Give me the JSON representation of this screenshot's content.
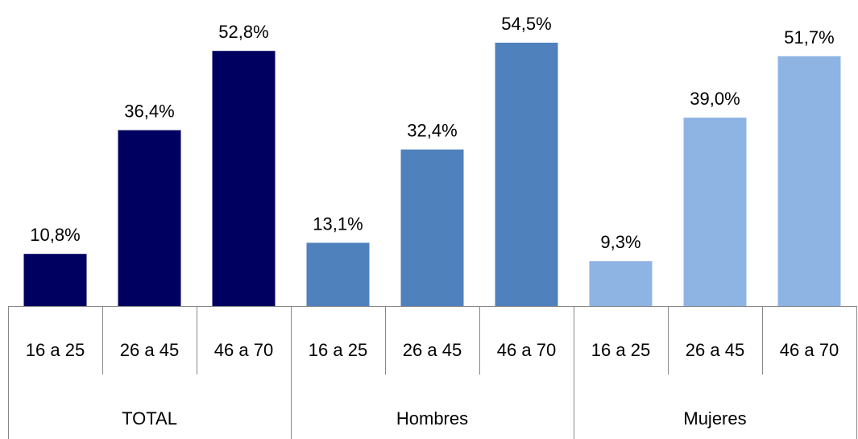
{
  "chart_data": {
    "type": "bar",
    "title": "",
    "xlabel": "",
    "ylabel": "",
    "ylim": [
      0,
      60
    ],
    "grid": false,
    "legend": "none",
    "groups": [
      {
        "name": "TOTAL",
        "color": "#000060",
        "bars": [
          {
            "category": "16 a 25",
            "value": 10.8,
            "label": "10,8%"
          },
          {
            "category": "26 a 45",
            "value": 36.4,
            "label": "36,4%"
          },
          {
            "category": "46 a 70",
            "value": 52.8,
            "label": "52,8%"
          }
        ]
      },
      {
        "name": "Hombres",
        "color": "#4F81BD",
        "bars": [
          {
            "category": "16 a 25",
            "value": 13.1,
            "label": "13,1%"
          },
          {
            "category": "26 a 45",
            "value": 32.4,
            "label": "32,4%"
          },
          {
            "category": "46 a 70",
            "value": 54.5,
            "label": "54,5%"
          }
        ]
      },
      {
        "name": "Mujeres",
        "color": "#8EB4E3",
        "bars": [
          {
            "category": "16 a 25",
            "value": 9.3,
            "label": "9,3%"
          },
          {
            "category": "26 a 45",
            "value": 39.0,
            "label": "39,0%"
          },
          {
            "category": "46 a 70",
            "value": 51.7,
            "label": "51,7%"
          }
        ]
      }
    ]
  },
  "colors": {
    "axis": "#888888",
    "text": "#000000"
  }
}
